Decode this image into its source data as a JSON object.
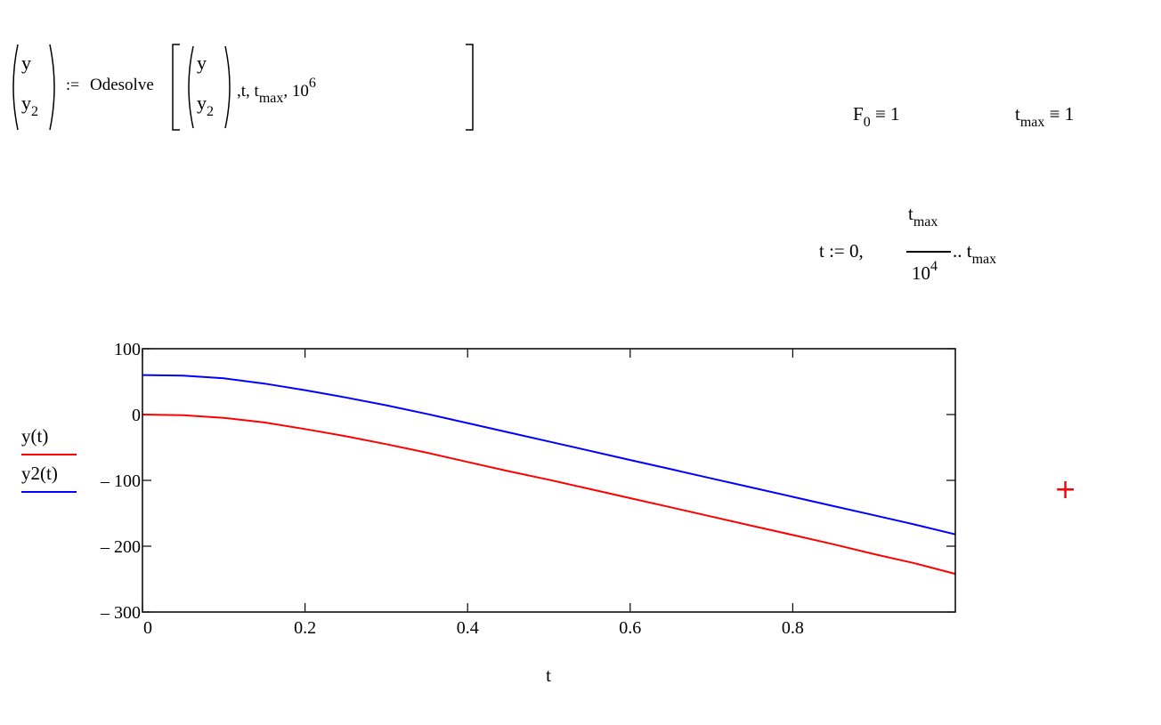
{
  "solve": {
    "lhs_top": "y",
    "lhs_bottom": "y",
    "lhs_bottom_sub": "2",
    "assign_op": ":=",
    "func": "Odesolve",
    "arg_top": "y",
    "arg_bottom": "y",
    "arg_bottom_sub": "2",
    "var": "t",
    "tmax_base": "t",
    "tmax_sub": "max",
    "steps_base": "10",
    "steps_exp": "6",
    "comma": ","
  },
  "globals": {
    "f0_base": "F",
    "f0_sub": "0",
    "f0_op": "≡",
    "f0_val": "1",
    "tmax_base": "t",
    "tmax_sub": "max",
    "tmax_op": "≡",
    "tmax_val": "1"
  },
  "range_def": {
    "var": "t",
    "op": ":=",
    "start": "0,",
    "num_base": "t",
    "num_sub": "max",
    "den_base": "10",
    "den_exp": "4",
    "dots": "..",
    "end_base": "t",
    "end_sub": "max"
  },
  "chart_data": {
    "type": "line",
    "xlabel": "t",
    "xlim": [
      0,
      1
    ],
    "ylim": [
      -300,
      100
    ],
    "xticks": [
      0,
      0.2,
      0.4,
      0.6,
      0.8
    ],
    "xtick_labels": [
      "0",
      "0.2",
      "0.4",
      "0.6",
      "0.8"
    ],
    "yticks": [
      100,
      0,
      -100,
      -200,
      -300
    ],
    "ytick_labels": [
      "100",
      "0",
      "– 100",
      "– 200",
      "– 300"
    ],
    "grid": false,
    "legend": [
      {
        "label": "y(t)",
        "color": "#ff0000"
      },
      {
        "label": "y2(t)",
        "color": "#0000ff"
      }
    ],
    "series": [
      {
        "color": "#ff0000",
        "x": [
          0,
          0.05,
          0.1,
          0.15,
          0.2,
          0.25,
          0.3,
          0.35,
          0.4,
          0.45,
          0.5,
          0.55,
          0.6,
          0.65,
          0.7,
          0.75,
          0.8,
          0.85,
          0.9,
          0.95,
          1.0
        ],
        "y": [
          0,
          -1,
          -5,
          -12,
          -22,
          -33,
          -45,
          -58,
          -72,
          -86,
          -99,
          -113,
          -127,
          -141,
          -155,
          -169,
          -183,
          -197,
          -212,
          -226,
          -242
        ]
      },
      {
        "color": "#0000ff",
        "x": [
          0,
          0.05,
          0.1,
          0.15,
          0.2,
          0.25,
          0.3,
          0.35,
          0.4,
          0.45,
          0.5,
          0.55,
          0.6,
          0.65,
          0.7,
          0.75,
          0.8,
          0.85,
          0.9,
          0.95,
          1.0
        ],
        "y": [
          60,
          59,
          55,
          47,
          37,
          26,
          14,
          1,
          -13,
          -27,
          -41,
          -55,
          -69,
          -83,
          -97,
          -111,
          -125,
          -139,
          -153,
          -167,
          -182
        ]
      }
    ]
  },
  "marker": {
    "symbol": "+",
    "color": "#ff0000"
  }
}
